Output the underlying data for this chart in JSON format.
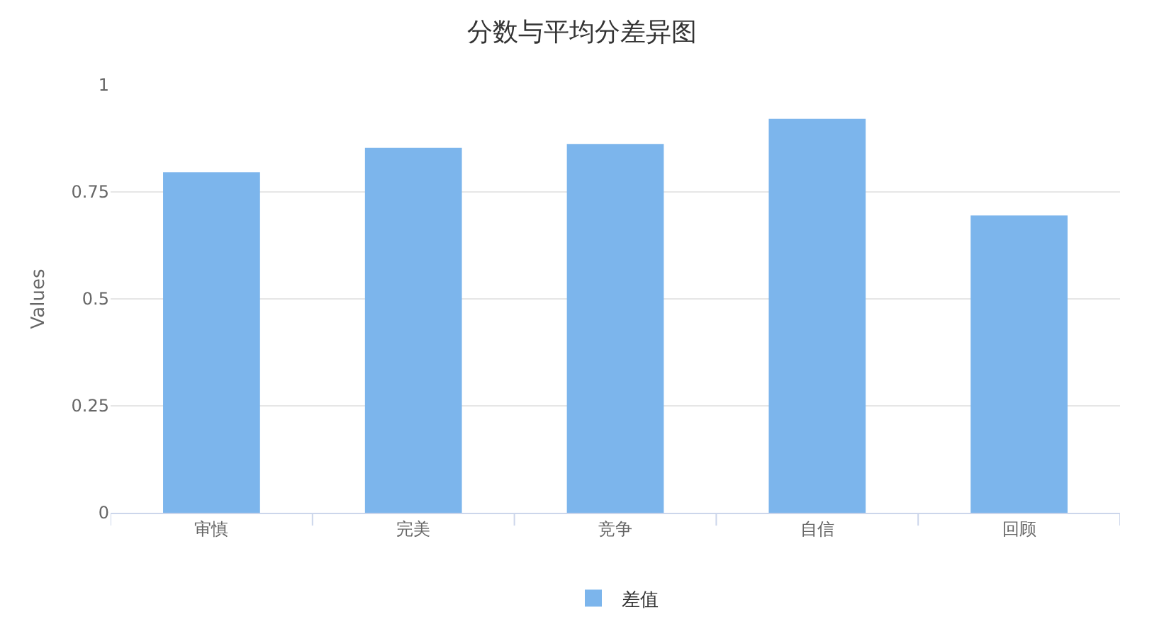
{
  "chart_data": {
    "type": "bar",
    "title": "分数与平均分差异图",
    "ylabel": "Values",
    "categories": [
      "审慎",
      "完美",
      "竞争",
      "自信",
      "回顾"
    ],
    "series": [
      {
        "name": "差值",
        "color": "#7cb5ec",
        "values": [
          0.796,
          0.853,
          0.862,
          0.921,
          0.695
        ]
      }
    ],
    "ylim": [
      0,
      1
    ],
    "yticks": [
      0,
      0.25,
      0.5,
      0.75,
      1
    ],
    "grid": "y",
    "legend": "bottom"
  }
}
